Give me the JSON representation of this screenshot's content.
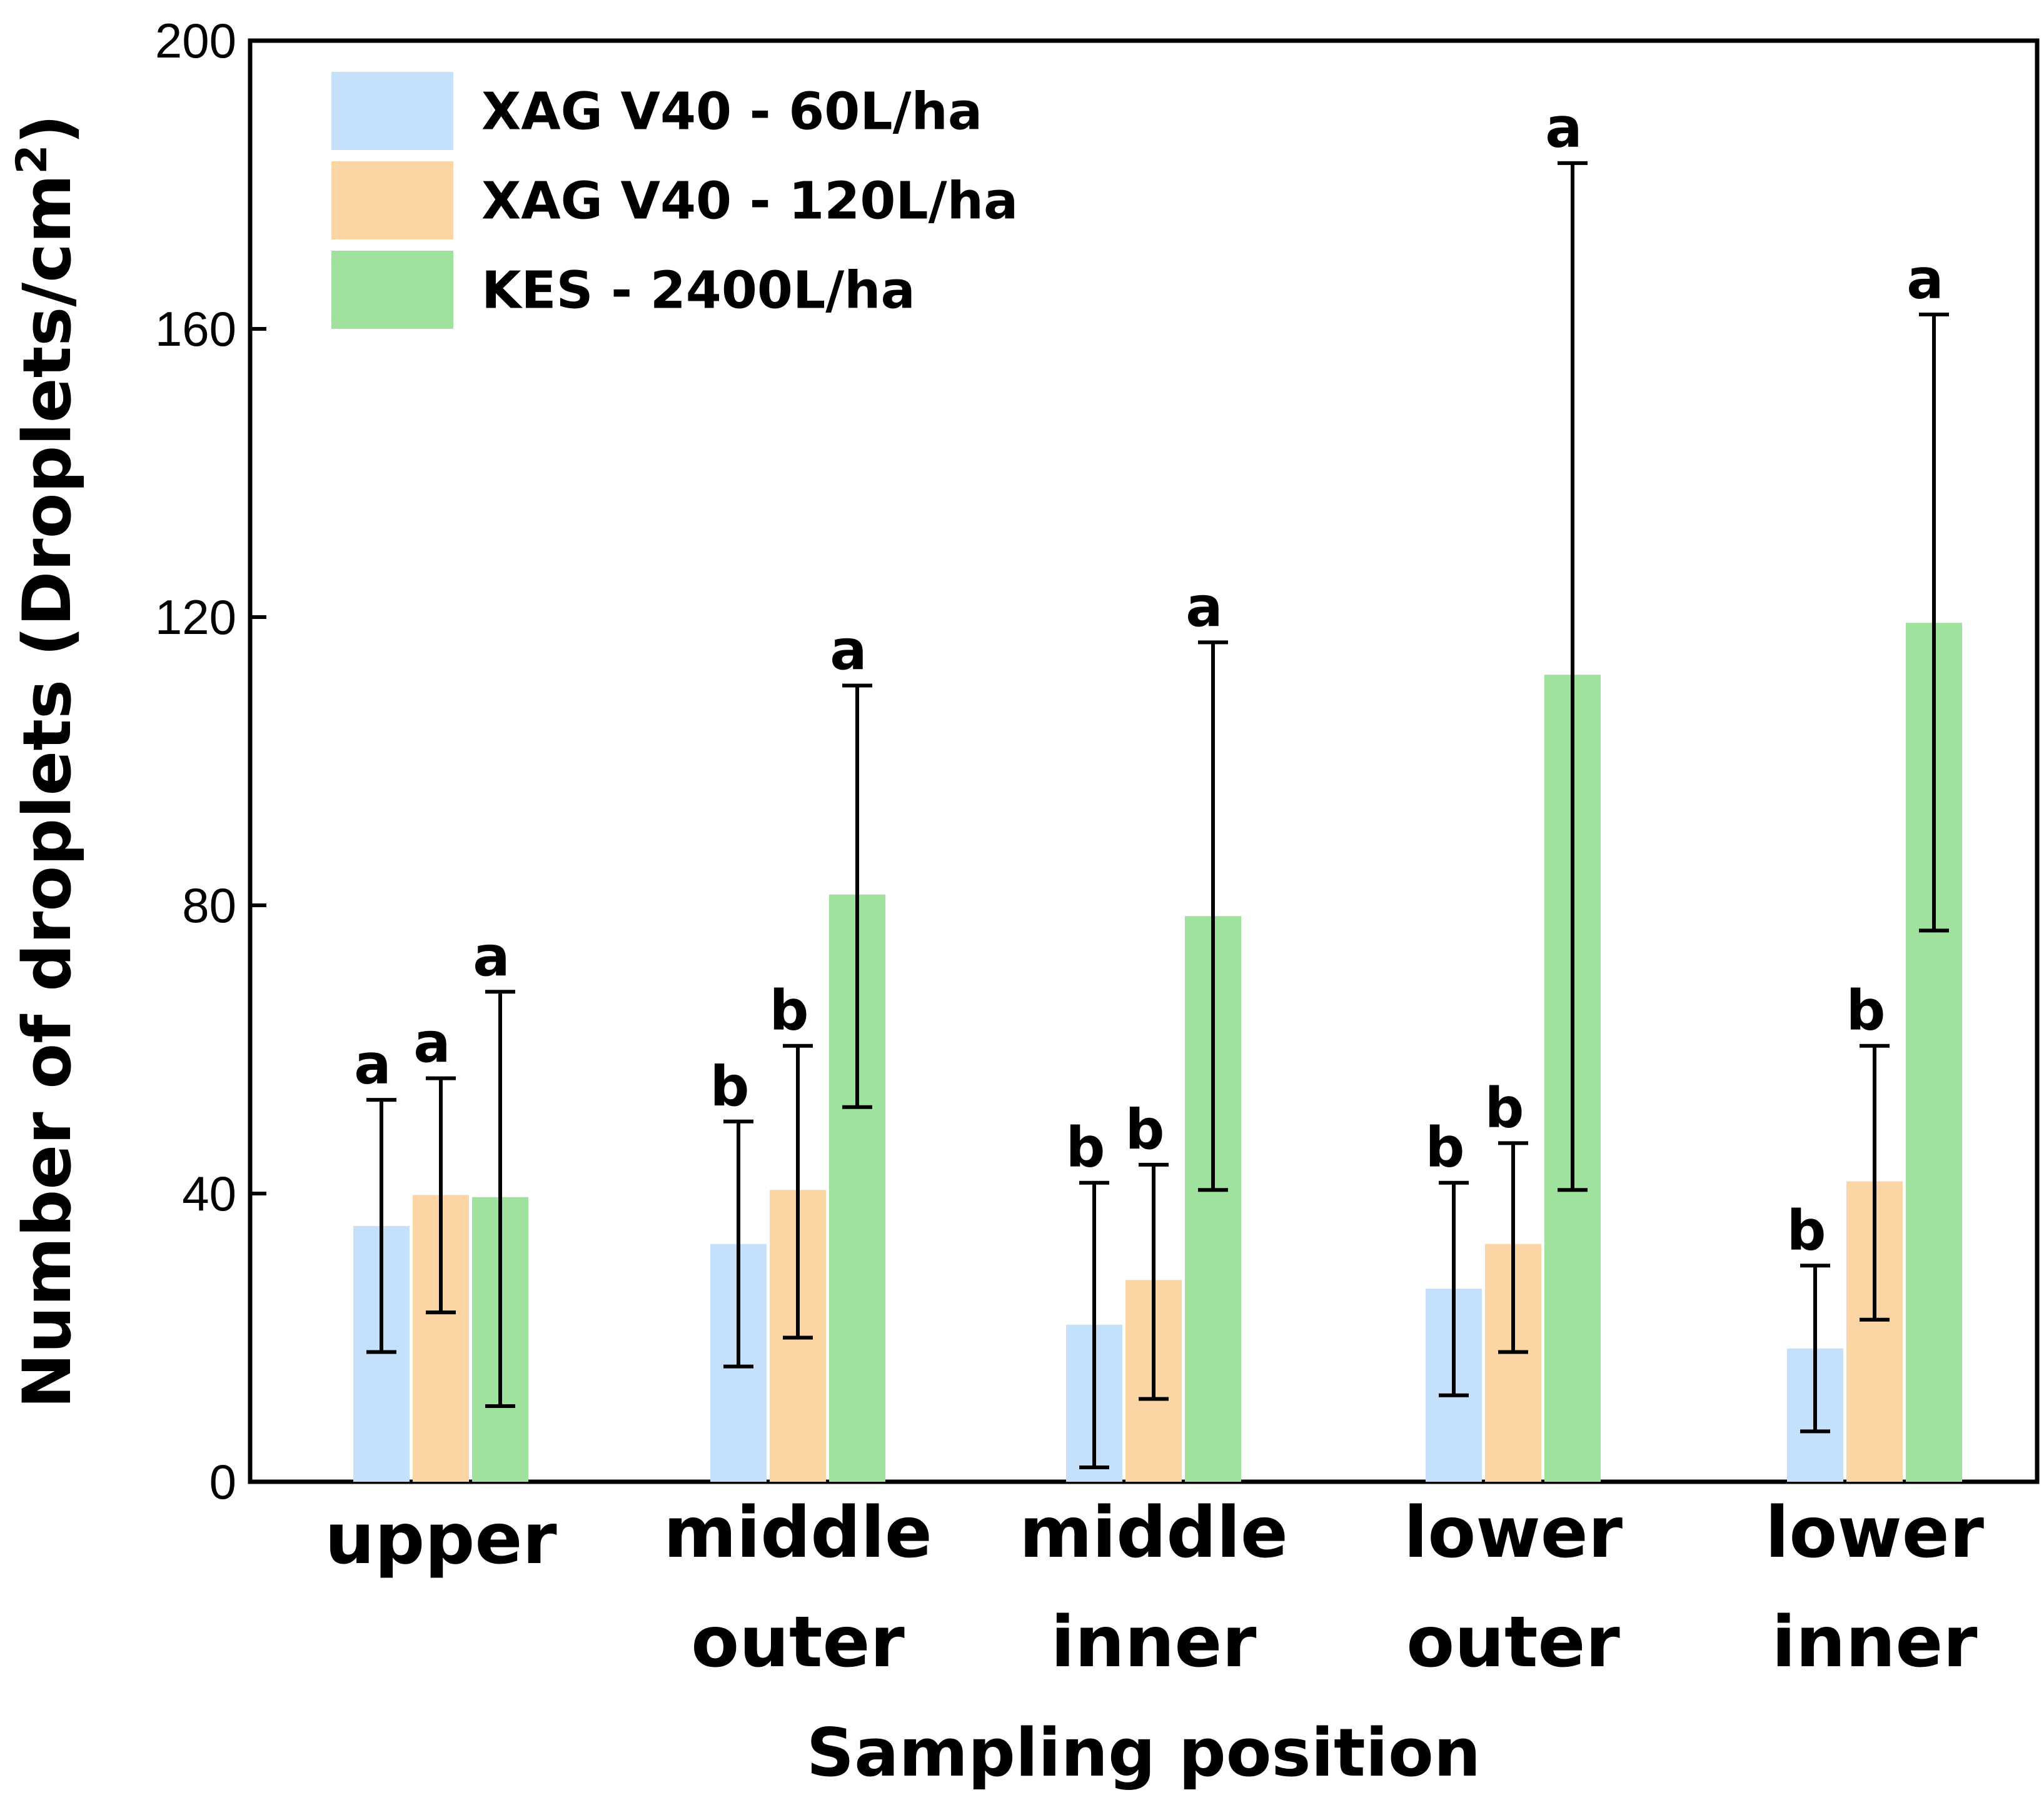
{
  "chart_data": {
    "type": "bar",
    "title": "",
    "xlabel": "Sampling position",
    "ylabel": "Number of droplets (Droplets/cm",
    "ylabel_superscript": "2",
    "ylabel_close": ")",
    "ylim": [
      0,
      200
    ],
    "yticks": [
      "0",
      "40",
      "80",
      "120",
      "160",
      "200"
    ],
    "categories": [
      [
        "upper"
      ],
      [
        "middle",
        "outer"
      ],
      [
        "middle",
        "inner"
      ],
      [
        "lower",
        "outer"
      ],
      [
        "lower",
        "inner"
      ]
    ],
    "legend_position": "top-left",
    "series": [
      {
        "name": "XAG V40 - 60L/ha",
        "color": "#c5e0fb",
        "values": [
          35.5,
          33.0,
          21.8,
          26.8,
          18.5
        ],
        "err_low": [
          18.0,
          16.0,
          2.0,
          12.0,
          7.0
        ],
        "err_high": [
          53.0,
          50.0,
          41.5,
          41.5,
          30.0
        ],
        "letters": [
          "a",
          "b",
          "b",
          "b",
          "b"
        ]
      },
      {
        "name": "XAG V40 - 120L/ha",
        "color": "#fbd5a4",
        "values": [
          39.8,
          40.5,
          28.0,
          33.0,
          41.7
        ],
        "err_low": [
          23.5,
          20.0,
          11.5,
          18.0,
          22.5
        ],
        "err_high": [
          56.0,
          60.5,
          44.0,
          47.0,
          60.5
        ],
        "letters": [
          "a",
          "b",
          "b",
          "b",
          "b"
        ]
      },
      {
        "name": "KES - 2400L/ha",
        "color": "#9ee29e",
        "values": [
          39.5,
          81.5,
          78.5,
          112.0,
          119.2
        ],
        "err_low": [
          10.5,
          52.0,
          40.5,
          40.5,
          76.5
        ],
        "err_high": [
          68.0,
          110.5,
          116.5,
          183.0,
          162.0
        ],
        "letters": [
          "a",
          "a",
          "a",
          "a",
          "a"
        ]
      }
    ]
  }
}
